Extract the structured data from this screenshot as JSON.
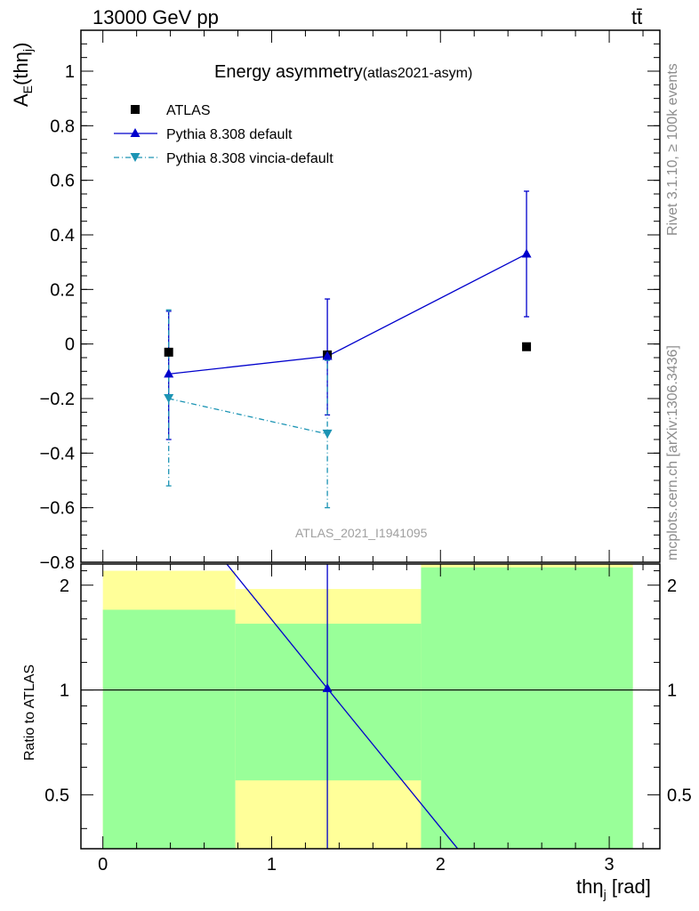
{
  "header": {
    "energy_label": "13000 GeV pp",
    "process_label": "tt̄"
  },
  "side_labels": {
    "rivet": "Rivet 3.1.10, ≥ 100k events",
    "mcplots": "mcplots.cern.ch [arXiv:1306.3436]"
  },
  "chart_data": [
    {
      "type": "scatter",
      "title": "Energy asymmetry",
      "title_suffix": "(atlas2021-asym)",
      "ylabel": "A",
      "ylabel_sub": "E",
      "ylabel_paren": "(thη",
      "ylabel_paren_sub": "j",
      "ylabel_close": ")",
      "watermark": "ATLAS_2021_I1941095",
      "xlim": [
        -0.13,
        3.3
      ],
      "ylim": [
        -0.8,
        1.15
      ],
      "yticks": [
        -0.8,
        -0.6,
        -0.4,
        -0.2,
        0,
        0.2,
        0.4,
        0.6,
        0.8,
        1
      ],
      "ytick_labels": [
        "−0.8",
        "−0.6",
        "−0.4",
        "−0.2",
        "0",
        "0.2",
        "0.4",
        "0.6",
        "0.8",
        "1"
      ],
      "legend_position": "top-left",
      "series": [
        {
          "name": "ATLAS",
          "style": "data",
          "color": "#000000",
          "points": [
            {
              "x": 0.39,
              "y": -0.03
            },
            {
              "x": 1.33,
              "y": -0.04
            },
            {
              "x": 2.51,
              "y": -0.01
            }
          ]
        },
        {
          "name": "Pythia 8.308 default",
          "style": "solid",
          "marker": "triangle-up",
          "color": "#0000cc",
          "points": [
            {
              "x": 0.39,
              "y": -0.11,
              "ylo": -0.35,
              "yhi": 0.12
            },
            {
              "x": 1.33,
              "y": -0.045,
              "ylo": -0.26,
              "yhi": 0.165
            },
            {
              "x": 2.51,
              "y": 0.33,
              "ylo": 0.1,
              "yhi": 0.56
            }
          ]
        },
        {
          "name": "Pythia 8.308 vincia-default",
          "style": "dashdot",
          "marker": "triangle-down",
          "color": "#1c94b4",
          "points": [
            {
              "x": 0.39,
              "y": -0.2,
              "ylo": -0.52,
              "yhi": 0.125
            },
            {
              "x": 1.33,
              "y": -0.33,
              "ylo": -0.6,
              "yhi": -0.06
            }
          ]
        }
      ]
    },
    {
      "type": "ratio",
      "ylabel": "Ratio to ATLAS",
      "ylim": [
        0.35,
        2.3
      ],
      "yscale": "log",
      "yticks": [
        0.5,
        1,
        2
      ],
      "ytick_labels": [
        "0.5",
        "1",
        "2"
      ],
      "xlim": [
        -0.13,
        3.3
      ],
      "xticks": [
        0,
        1,
        2,
        3
      ],
      "xtick_labels": [
        "0",
        "1",
        "2",
        "3"
      ],
      "xlabel": "thη",
      "xlabel_sub": "j",
      "xlabel_unit": " [rad]",
      "bands": [
        {
          "x0": 0.0,
          "x1": 0.785,
          "inner_lo": 0.35,
          "inner_hi": 1.7,
          "outer_lo": 0.35,
          "outer_hi": 2.2
        },
        {
          "x0": 0.785,
          "x1": 1.885,
          "inner_lo": 0.55,
          "inner_hi": 1.55,
          "outer_lo": 0.35,
          "outer_hi": 1.95
        },
        {
          "x0": 1.885,
          "x1": 3.14,
          "inner_lo": 0.35,
          "inner_hi": 2.25,
          "outer_lo": 0.35,
          "outer_hi": 2.3
        }
      ],
      "series": [
        {
          "name": "Pythia 8.308 default",
          "color": "#0000cc",
          "points": [
            {
              "x": 0.39,
              "y": 3.7
            },
            {
              "x": 1.33,
              "y": 1.01
            },
            {
              "x": 2.51,
              "y": 0.2
            }
          ],
          "errbar_x": 1.33
        }
      ]
    }
  ]
}
